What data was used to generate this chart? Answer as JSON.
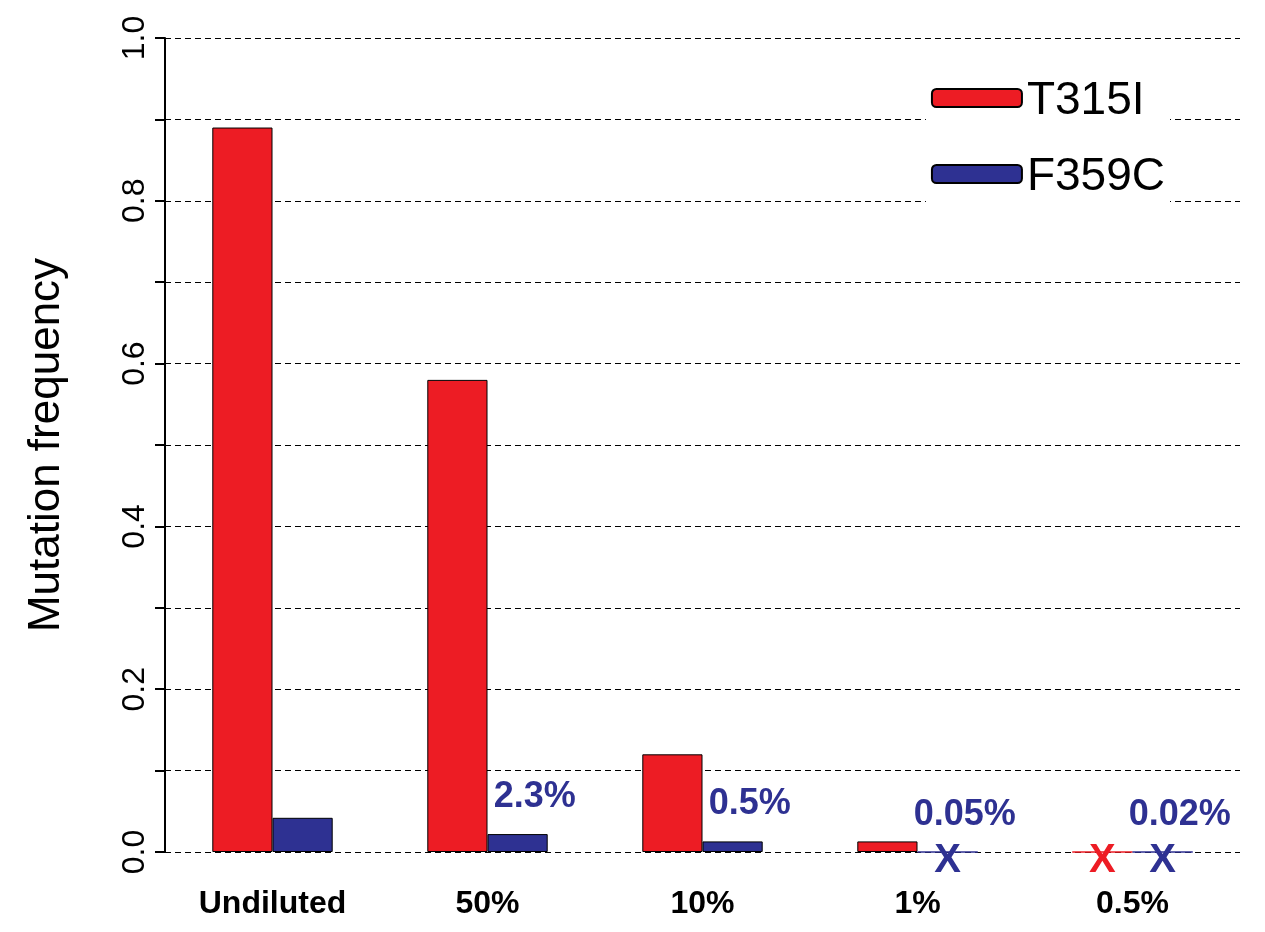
{
  "chart_data": {
    "type": "bar",
    "ylabel": "Mutation frequency",
    "categories": [
      "Undiluted",
      "50%",
      "10%",
      "1%",
      "0.5%"
    ],
    "series": [
      {
        "name": "T315I",
        "color": "#ed1c24",
        "values": [
          0.89,
          0.58,
          0.12,
          0.013,
          0
        ],
        "value_labels": [
          null,
          null,
          null,
          null,
          "X"
        ]
      },
      {
        "name": "F359C",
        "color": "#2e3192",
        "values": [
          0.042,
          0.022,
          0.013,
          0,
          0
        ],
        "value_labels": [
          null,
          null,
          null,
          "X",
          "X"
        ]
      }
    ],
    "annotations": [
      {
        "text": "2.3%",
        "x": "50%",
        "y": 0.022
      },
      {
        "text": "0.5%",
        "x": "10%",
        "y": 0.013
      },
      {
        "text": "0.05%",
        "x": "1%",
        "y": 0
      },
      {
        "text": "0.02%",
        "x": "0.5%",
        "y": 0
      }
    ],
    "ylim": [
      0,
      1
    ],
    "yticks": [
      {
        "value": 0,
        "label": "0.0"
      },
      {
        "value": 0.1,
        "label": null
      },
      {
        "value": 0.2,
        "label": "0.2"
      },
      {
        "value": 0.3,
        "label": null
      },
      {
        "value": 0.4,
        "label": "0.4"
      },
      {
        "value": 0.5,
        "label": null
      },
      {
        "value": 0.6,
        "label": "0.6"
      },
      {
        "value": 0.7,
        "label": null
      },
      {
        "value": 0.8,
        "label": "0.8"
      },
      {
        "value": 0.9,
        "label": null
      },
      {
        "value": 1,
        "label": "1.0"
      }
    ],
    "grid": "y",
    "legend": "top right"
  }
}
